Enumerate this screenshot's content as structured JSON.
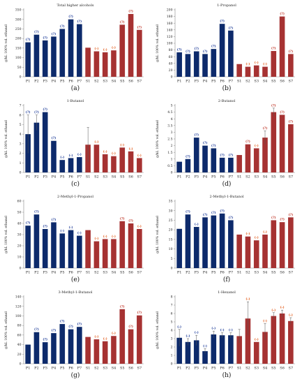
{
  "colors": {
    "P": "#0d2a6b",
    "S": "#a63232",
    "sig_P": "#1f3d99",
    "sig_S": "#c0392b",
    "sig_hi": "#e25b1a"
  },
  "chart_data": [
    {
      "panel": "(a)",
      "type": "bar",
      "title": "Total higher alcohols",
      "ylabel": "g/hL 100% vol. ethanol",
      "categories": [
        "P1",
        "P2",
        "P3",
        "P4",
        "P5",
        "P6",
        "P7",
        "S1",
        "S2",
        "S3",
        "S4",
        "S5",
        "S6",
        "S7"
      ],
      "values": [
        180,
        220,
        190,
        210,
        250,
        300,
        275,
        152,
        133,
        128,
        138,
        272,
        328,
        245
      ],
      "errors": [
        0,
        0,
        0,
        0,
        0,
        0,
        0,
        0,
        0,
        0,
        0,
        0,
        0,
        0
      ],
      "sig": [
        "(?)",
        "(?)",
        "(?)",
        "(?)",
        "(?)",
        "(?)",
        "(?)",
        "",
        "(-)",
        "(-)",
        "(-)",
        "(?)",
        "(?)",
        "(?)"
      ],
      "ylim": [
        0,
        350
      ],
      "yticks": [
        0,
        50,
        100,
        150,
        200,
        250,
        300,
        350
      ]
    },
    {
      "panel": "(b)",
      "type": "bar",
      "title": "1-Propanol",
      "ylabel": "g/hL 100% vol. ethanol",
      "categories": [
        "P1",
        "P2",
        "P3",
        "P4",
        "P5",
        "P6",
        "P7",
        "S1",
        "S2",
        "S3",
        "S4",
        "S5",
        "S6",
        "S7"
      ],
      "values": [
        73,
        68,
        76,
        68,
        83,
        158,
        138,
        38,
        30,
        34,
        30,
        77,
        180,
        68
      ],
      "errors": [
        0,
        0,
        0,
        0,
        0,
        0,
        0,
        0,
        0,
        0,
        0,
        0,
        0,
        0
      ],
      "sig": [
        "(?)",
        "(?)",
        "(?)",
        "(?)",
        "(?)",
        "(?)",
        "(?)",
        "",
        "(-)",
        "(-)",
        "(-)",
        "(?)",
        "(?)",
        "(?)"
      ],
      "ylim": [
        0,
        200
      ],
      "yticks": [
        0,
        20,
        40,
        60,
        80,
        100,
        120,
        140,
        160,
        180,
        200
      ]
    },
    {
      "panel": "(c)",
      "type": "bar",
      "title": "1-Butanol",
      "ylabel": "g/hL 100% vol. ethanol",
      "categories": [
        "P1",
        "P2",
        "P3",
        "P4",
        "P5",
        "P6",
        "P7",
        "S1",
        "S2",
        "S3",
        "S4",
        "S5",
        "S6",
        "S7"
      ],
      "values": [
        4.0,
        5.2,
        6.3,
        3.3,
        1.3,
        1.5,
        1.6,
        2.9,
        2.9,
        1.9,
        1.7,
        2.6,
        2.2,
        1.5
      ],
      "errors": [
        2.0,
        0.8,
        0,
        0,
        0,
        0,
        0,
        1.8,
        0,
        0,
        0,
        0,
        0,
        0
      ],
      "sig": [
        "(?)",
        "(?)",
        "(?)",
        "(?)",
        "(-)",
        "(-)",
        "(-)",
        "",
        "(-)",
        "(-)",
        "(-)",
        "(-)",
        "(-)",
        "(-)"
      ],
      "ylim": [
        0,
        7
      ],
      "yticks": [
        0,
        1,
        2,
        3,
        4,
        5,
        6,
        7
      ]
    },
    {
      "panel": "(d)",
      "type": "bar",
      "title": "2-Butanol",
      "ylabel": "g/hL 100% vol. ethanol",
      "categories": [
        "P1",
        "P2",
        "P3",
        "P4",
        "P5",
        "P6",
        "P7",
        "S1",
        "S2",
        "S3",
        "S4",
        "S5",
        "S6",
        "S7"
      ],
      "values": [
        0.8,
        1.0,
        2.6,
        2.0,
        1.8,
        1.1,
        1.1,
        1.3,
        2.1,
        1.8,
        2.6,
        4.5,
        4.3,
        3.6
      ],
      "errors": [
        0,
        0,
        0,
        0,
        0,
        0,
        0,
        0,
        0,
        0,
        0.5,
        0.3,
        0,
        0
      ],
      "sig": [
        "",
        "(?)",
        "(?)",
        "(?)",
        "(?)",
        "(?)",
        "(?)",
        "",
        "(?)",
        "(-)",
        "(?)",
        "(?)",
        "(?)",
        "(?)"
      ],
      "ylim": [
        0,
        5
      ],
      "yticks": [
        0,
        0.5,
        1,
        1.5,
        2,
        2.5,
        3,
        3.5,
        4,
        4.5,
        5
      ]
    },
    {
      "panel": "(e)",
      "type": "bar",
      "title": "2-Methyl-1-Propanol",
      "ylabel": "g/hL 100% vol. ethanol",
      "categories": [
        "P1",
        "P2",
        "P3",
        "P4",
        "P5",
        "P6",
        "P7",
        "S1",
        "S2",
        "S3",
        "S4",
        "S5",
        "S6",
        "S7"
      ],
      "values": [
        38,
        48,
        35,
        41,
        31,
        34,
        29,
        34,
        24,
        26,
        26,
        42,
        40,
        35
      ],
      "errors": [
        0,
        0,
        0,
        0,
        0,
        0,
        0,
        0,
        0,
        0,
        0,
        0,
        0,
        0
      ],
      "sig": [
        "(?)",
        "(?)",
        "(?)",
        "(?)",
        "(-)",
        "(-)",
        "(-)",
        "",
        "(-)",
        "(-)",
        "(-)",
        "(?)",
        "(?)",
        "(-)"
      ],
      "ylim": [
        0,
        60
      ],
      "yticks": [
        0,
        10,
        20,
        30,
        40,
        50,
        60
      ]
    },
    {
      "panel": "(f)",
      "type": "bar",
      "title": "2-Methyl-1-Butanol",
      "ylabel": "g/hL 100% vol. ethanol",
      "categories": [
        "P1",
        "P2",
        "P3",
        "P4",
        "P5",
        "P6",
        "P7",
        "S1",
        "S2",
        "S3",
        "S4",
        "S5",
        "S6",
        "S7"
      ],
      "values": [
        20.5,
        28.0,
        21.5,
        26.5,
        27.5,
        28.5,
        25.0,
        17.5,
        16.5,
        14.5,
        17.5,
        25.0,
        24.0,
        26.5
      ],
      "errors": [
        0,
        0,
        0,
        0,
        0,
        0,
        0,
        0,
        0,
        0,
        0,
        0,
        0,
        0
      ],
      "sig": [
        "",
        "(?)",
        "(-)",
        "(?)",
        "(?)",
        "(?)",
        "(?)",
        "",
        "(-)",
        "(-)",
        "(-)",
        "(?)",
        "(?)",
        "(?)"
      ],
      "ylim": [
        0,
        35
      ],
      "yticks": [
        0,
        5,
        10,
        15,
        20,
        25,
        30,
        35
      ]
    },
    {
      "panel": "(g)",
      "type": "bar",
      "title": "3-Methyl-1-Butanol",
      "ylabel": "g/hL 100% vol. ethanol",
      "categories": [
        "P1",
        "P2",
        "P3",
        "P4",
        "P5",
        "P6",
        "P7",
        "S1",
        "S2",
        "S3",
        "S4",
        "S5",
        "S6",
        "S7"
      ],
      "values": [
        40,
        66,
        45,
        64,
        83,
        72,
        77,
        56,
        51,
        47,
        58,
        114,
        72,
        101
      ],
      "errors": [
        0,
        0,
        0,
        0,
        0,
        0,
        0,
        0,
        0,
        0,
        0,
        0,
        0,
        0
      ],
      "sig": [
        "",
        "(?)",
        "(?)",
        "(?)",
        "(?)",
        "(?)",
        "(?)",
        "",
        "(-)",
        "(-)",
        "(-)",
        "(?)",
        "(?)",
        "(?)"
      ],
      "ylim": [
        0,
        140
      ],
      "yticks": [
        0,
        20,
        40,
        60,
        80,
        100,
        120,
        140
      ]
    },
    {
      "panel": "(h)",
      "type": "bar",
      "title": "1-Hexanol",
      "ylabel": "g/hL 100% vol. ethanol",
      "categories": [
        "P1",
        "P2",
        "P3",
        "P4",
        "P5",
        "P6",
        "P7",
        "S1",
        "S2",
        "S3",
        "S4",
        "S5",
        "S6",
        "S7"
      ],
      "values": [
        3.1,
        2.6,
        2.8,
        1.5,
        3.5,
        3.4,
        3.4,
        3.3,
        5.4,
        2.6,
        3.8,
        5.7,
        6.0,
        5.1
      ],
      "errors": [
        1.0,
        0.4,
        0.6,
        0.3,
        0.4,
        0.3,
        0.3,
        0.8,
        2.0,
        0,
        1.0,
        0.4,
        0.4,
        0.4
      ],
      "sig": [
        "(-)",
        "(-)",
        "(-)",
        "(-)",
        "(-)",
        "(-)",
        "(-)",
        "",
        "(-)",
        "(-)",
        "(-)",
        "(-)",
        "(-)",
        "(-)"
      ],
      "ylim": [
        0,
        8
      ],
      "yticks": [
        0,
        1,
        2,
        3,
        4,
        5,
        6,
        7,
        8
      ]
    }
  ]
}
